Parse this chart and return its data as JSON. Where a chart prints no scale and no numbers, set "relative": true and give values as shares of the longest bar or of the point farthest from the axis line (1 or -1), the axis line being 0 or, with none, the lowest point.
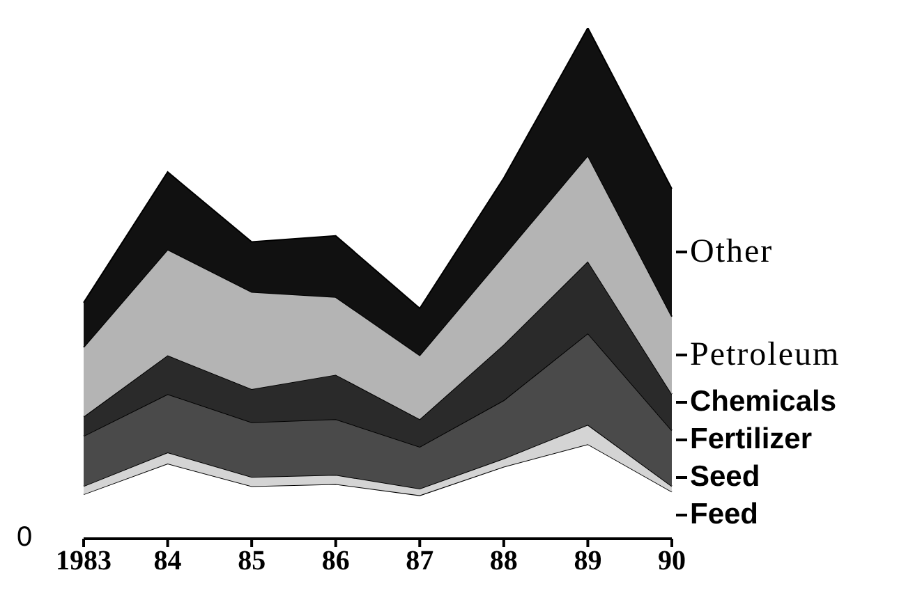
{
  "chart_data": {
    "type": "area",
    "stacked": true,
    "relative": true,
    "legend": "right",
    "categories": [
      "1983",
      "84",
      "85",
      "86",
      "87",
      "88",
      "89",
      "90"
    ],
    "series": [
      {
        "name": "Feed",
        "color": "#ffffff",
        "values": [
          0.087,
          0.147,
          0.103,
          0.107,
          0.085,
          0.141,
          0.185,
          0.092
        ]
      },
      {
        "name": "Seed",
        "color": "#d4d4d4",
        "values": [
          0.016,
          0.022,
          0.018,
          0.018,
          0.013,
          0.016,
          0.038,
          0.011
        ]
      },
      {
        "name": "Fertilizer",
        "color": "#4a4a4a",
        "values": [
          0.098,
          0.114,
          0.107,
          0.109,
          0.082,
          0.114,
          0.179,
          0.109
        ]
      },
      {
        "name": "Chemicals",
        "color": "#2a2a2a",
        "values": [
          0.038,
          0.076,
          0.065,
          0.087,
          0.054,
          0.109,
          0.141,
          0.071
        ]
      },
      {
        "name": "Petroleum",
        "color": "#b4b4b4",
        "values": [
          0.136,
          0.207,
          0.19,
          0.152,
          0.125,
          0.174,
          0.207,
          0.152
        ]
      },
      {
        "name": "Other",
        "color": "#111111",
        "values": [
          0.087,
          0.152,
          0.098,
          0.12,
          0.092,
          0.152,
          0.25,
          0.25
        ]
      }
    ],
    "annotations": [
      "0"
    ]
  }
}
